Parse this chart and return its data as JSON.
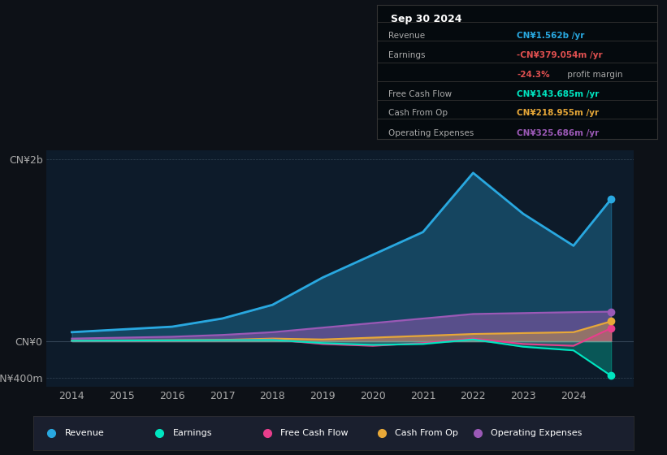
{
  "background_color": "#0d1117",
  "plot_bg_color": "#0d1b2a",
  "ylim": [
    -500000000,
    2100000000
  ],
  "yticks": [
    -400000000,
    0,
    2000000000
  ],
  "ytick_labels": [
    "-CN¥400m",
    "CN¥0",
    "CN¥2b"
  ],
  "years": [
    2014,
    2015,
    2016,
    2017,
    2018,
    2019,
    2020,
    2021,
    2022,
    2023,
    2024,
    2024.75
  ],
  "revenue": [
    100000000,
    130000000,
    160000000,
    250000000,
    400000000,
    700000000,
    950000000,
    1200000000,
    1850000000,
    1400000000,
    1050000000,
    1562000000
  ],
  "earnings": [
    5000000,
    8000000,
    10000000,
    12000000,
    15000000,
    -20000000,
    -40000000,
    -30000000,
    20000000,
    -60000000,
    -100000000,
    -379054000
  ],
  "free_cash_flow": [
    5000000,
    6000000,
    8000000,
    10000000,
    20000000,
    -30000000,
    -50000000,
    -20000000,
    30000000,
    -30000000,
    -50000000,
    143685000
  ],
  "cash_from_op": [
    8000000,
    10000000,
    12000000,
    15000000,
    30000000,
    20000000,
    40000000,
    60000000,
    80000000,
    90000000,
    100000000,
    218955000
  ],
  "operating_expenses": [
    30000000,
    40000000,
    50000000,
    70000000,
    100000000,
    150000000,
    200000000,
    250000000,
    300000000,
    310000000,
    320000000,
    325686000
  ],
  "revenue_color": "#29a8e0",
  "earnings_color": "#00e5c0",
  "free_cash_flow_color": "#e83e8c",
  "cash_from_op_color": "#e8a838",
  "operating_expenses_color": "#9b59b6",
  "legend_items": [
    {
      "label": "Revenue",
      "color": "#29a8e0"
    },
    {
      "label": "Earnings",
      "color": "#00e5c0"
    },
    {
      "label": "Free Cash Flow",
      "color": "#e83e8c"
    },
    {
      "label": "Cash From Op",
      "color": "#e8a838"
    },
    {
      "label": "Operating Expenses",
      "color": "#9b59b6"
    }
  ]
}
